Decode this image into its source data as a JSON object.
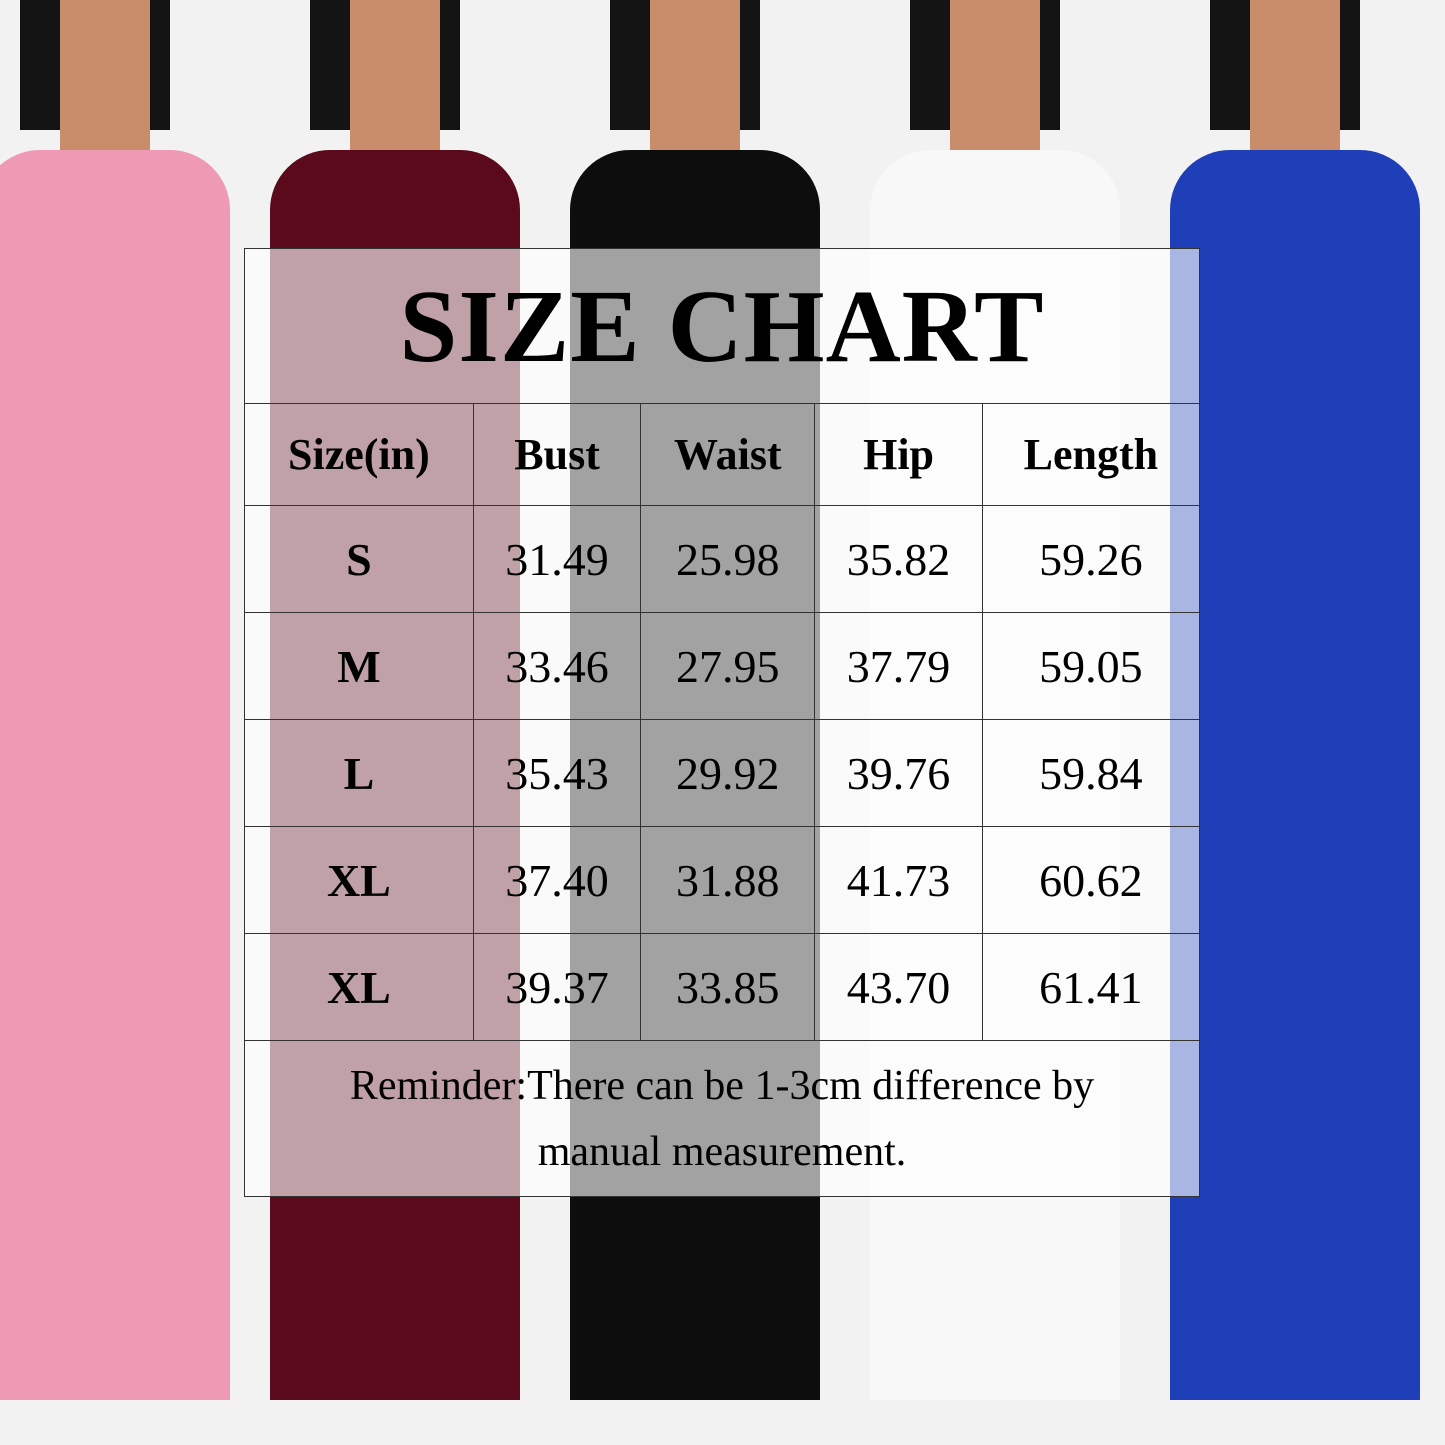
{
  "title": "SIZE CHART",
  "colors": {
    "variants": [
      "#ef9ab5",
      "#5a0a1a",
      "#0d0d0d",
      "#f8f8f8",
      "#1e3fb8"
    ]
  },
  "chart_data": {
    "type": "table",
    "title": "SIZE CHART",
    "columns": [
      "Size(in)",
      "Bust",
      "Waist",
      "Hip",
      "Length"
    ],
    "rows": [
      [
        "S",
        "31.49",
        "25.98",
        "35.82",
        "59.26"
      ],
      [
        "M",
        "33.46",
        "27.95",
        "37.79",
        "59.05"
      ],
      [
        "L",
        "35.43",
        "29.92",
        "39.76",
        "59.84"
      ],
      [
        "XL",
        "37.40",
        "31.88",
        "41.73",
        "60.62"
      ],
      [
        "XL",
        "39.37",
        "33.85",
        "43.70",
        "61.41"
      ]
    ]
  },
  "reminder": {
    "line1": "Reminder:There can be 1-3cm difference by",
    "line2": "manual measurement."
  }
}
